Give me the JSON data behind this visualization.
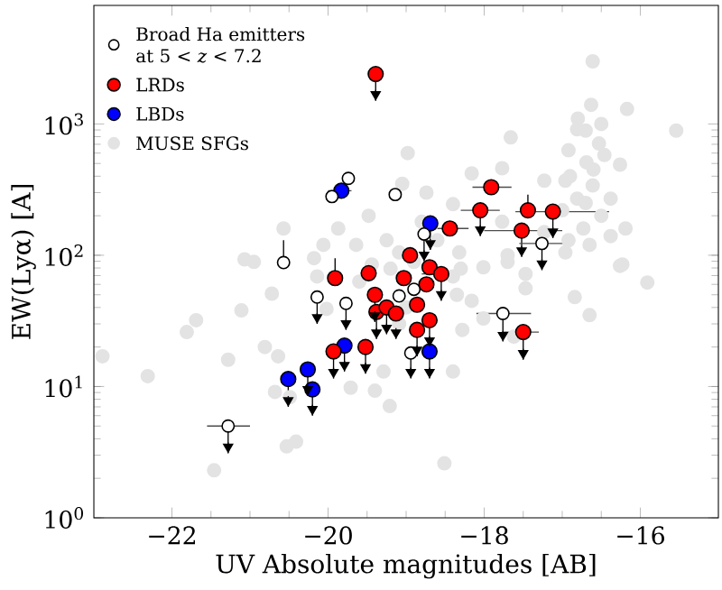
{
  "chart_data": {
    "type": "scatter",
    "xlabel": "UV Absolute magnitudes [AB]",
    "ylabel": "EW(Lyα) [A]",
    "xlim": [
      -23,
      -15
    ],
    "ylim": [
      1,
      8000
    ],
    "log": "y",
    "marker": "circle",
    "legend": "top left",
    "grid": false,
    "xticks": [
      {
        "value": -22,
        "label": "−22"
      },
      {
        "value": -20,
        "label": "−20"
      },
      {
        "value": -18,
        "label": "−18"
      },
      {
        "value": -16,
        "label": "−16"
      }
    ],
    "yticks": [
      {
        "value": 1,
        "label": "10$^{0}$"
      },
      {
        "value": 10,
        "label": "10$^{1}$"
      },
      {
        "value": 100,
        "label": "10$^{2}$"
      },
      {
        "value": 1000,
        "label": "10$^{3}$"
      }
    ],
    "series": [
      {
        "name": "Broad Ha emitters at 5 < *z* < 7.2",
        "color": "#ffffff",
        "x": [
          -19.74,
          -19.95,
          -19.14,
          -18.77,
          -20.57,
          -17.26,
          -20.14,
          -19.77,
          -19.09,
          -18.9,
          -18.94,
          -21.28,
          -17.76
        ],
        "values": [
          385,
          280,
          290,
          145,
          88,
          123,
          48,
          43,
          49,
          55,
          18,
          5.0,
          36
        ],
        "errors": [
          null,
          null,
          null,
          [
            90,
            145
          ],
          [
            88,
            130
          ],
          [
            77,
            123
          ],
          [
            30,
            48
          ],
          [
            27,
            43
          ],
          null,
          null,
          [
            11.5,
            18
          ],
          [
            3.1,
            5.0
          ],
          [
            22,
            36
          ]
        ],
        "xerrors": [
          null,
          null,
          null,
          null,
          null,
          [
            -17.55,
            -16.95
          ],
          null,
          null,
          null,
          null,
          null,
          [
            -21.55,
            -21.0
          ],
          [
            -18.1,
            -17.4
          ]
        ]
      },
      {
        "name": "LRDs",
        "color": "#ff0000",
        "x": [
          -19.39,
          -19.91,
          -19.48,
          -18.95,
          -19.03,
          -18.7,
          -17.91,
          -18.05,
          -17.44,
          -17.12,
          -17.52,
          -18.44,
          -18.55,
          -19.4,
          -19.38,
          -19.25,
          -19.13,
          -18.86,
          -18.7,
          -18.86,
          -19.93,
          -19.52,
          -18.74,
          -17.5
        ],
        "values": [
          2400,
          67,
          73,
          100,
          67,
          81,
          330,
          220,
          220,
          215,
          154,
          160,
          72,
          50,
          37,
          40,
          36,
          42,
          32,
          27,
          18.5,
          20,
          60,
          26
        ],
        "errors": [
          [
            1500,
            2400
          ],
          [
            67,
            95
          ],
          null,
          null,
          null,
          null,
          null,
          [
            140,
            220
          ],
          [
            220,
            290
          ],
          [
            135,
            215
          ],
          [
            97,
            154
          ],
          null,
          [
            45,
            72
          ],
          [
            31,
            50
          ],
          [
            23,
            37
          ],
          [
            25,
            40
          ],
          [
            23,
            36
          ],
          null,
          [
            20,
            32
          ],
          [
            17,
            27
          ],
          [
            11.5,
            18.5
          ],
          [
            12.5,
            20
          ],
          null,
          [
            16,
            26
          ]
        ],
        "xerrors": [
          null,
          null,
          null,
          null,
          null,
          null,
          [
            -18.15,
            -17.65
          ],
          [
            -18.3,
            -17.8
          ],
          null,
          [
            -17.6,
            -16.4
          ],
          [
            -18.0,
            -17.0
          ],
          [
            -18.6,
            -18.2
          ],
          [
            -18.8,
            -18.3
          ],
          null,
          null,
          null,
          null,
          null,
          null,
          null,
          null,
          null,
          null,
          [
            -17.75,
            -17.3
          ]
        ]
      },
      {
        "name": "LBDs",
        "color": "#0000ff",
        "x": [
          -19.83,
          -18.69,
          -19.79,
          -20.51,
          -20.26,
          -20.2,
          -18.7
        ],
        "values": [
          310,
          175,
          20.5,
          11.4,
          13.5,
          9.5,
          18.5
        ],
        "errors": [
          null,
          [
            110,
            175
          ],
          [
            13,
            20.5
          ],
          [
            7,
            11.4
          ],
          [
            8.5,
            13.5
          ],
          [
            6,
            9.5
          ],
          [
            11.5,
            18.5
          ]
        ],
        "xerrors": [
          [
            -20.0,
            -19.7
          ],
          null,
          null,
          null,
          null,
          null,
          null
        ]
      },
      {
        "name": "MUSE SFGs",
        "color": "#e3e3e3",
        "x": [
          -22.89,
          -22.31,
          -21.46,
          -21.28,
          -21.81,
          -21.69,
          -21.11,
          -20.72,
          -20.81,
          -20.64,
          -20.68,
          -20.53,
          -20.41,
          -20.49,
          -20.14,
          -20.02,
          -19.71,
          -19.21,
          -19.29,
          -20.18,
          -21.07,
          -20.57,
          -20.06,
          -19.48,
          -18.98,
          -19.05,
          -18.74,
          -19.87,
          -19.64,
          -20.95,
          -19.25,
          -19.09,
          -16.61,
          -16.17,
          -15.54,
          -17.66,
          -16.63,
          -16.81,
          -16.53,
          -17.77,
          -18.16,
          -16.92,
          -16.46,
          -16.69,
          -16.26,
          -17.23,
          -16.96,
          -16.61,
          -16.81,
          -16.38,
          -16.5,
          -16.73,
          -16.38,
          -16.19,
          -16.65,
          -16.92,
          -16.23,
          -15.91,
          -17.7,
          -17.47,
          -18.01,
          -18.32,
          -18.4,
          -17.77,
          -17.23,
          -16.96,
          -19.44,
          -17.7,
          -17.47,
          -16.84,
          -16.65,
          -16.26,
          -18.4,
          -18.51,
          -19.4,
          -18.28,
          -18.16,
          -18.01,
          -17.62,
          -19.09,
          -18.4,
          -18.9,
          -18.6,
          -18.35,
          -19.2,
          -18.8,
          -19.6,
          -19.0,
          -18.3,
          -17.0,
          -16.7,
          -16.9,
          -16.6,
          -16.7,
          -16.8,
          -16.5
        ],
        "values": [
          17,
          12,
          2.3,
          16,
          26,
          32,
          38,
          51,
          20,
          17,
          9.1,
          3.5,
          3.8,
          8.3,
          69,
          39,
          9.8,
          7.1,
          13,
          95,
          93,
          160,
          120,
          200,
          600,
          350,
          300,
          160,
          120,
          89,
          130,
          105,
          3000,
          1300,
          890,
          790,
          1400,
          910,
          710,
          460,
          420,
          630,
          580,
          510,
          490,
          370,
          370,
          340,
          270,
          270,
          200,
          160,
          140,
          160,
          120,
          130,
          85,
          62,
          100,
          72,
          81,
          105,
          245,
          180,
          150,
          105,
          85,
          89,
          56,
          48,
          35,
          83,
          13,
          2.6,
          9.3,
          27,
          45,
          33,
          24,
          30,
          69,
          89,
          130,
          50,
          79,
          180,
          63,
          40,
          79,
          220,
          250,
          400,
          450,
          890,
          1100,
          1000
        ]
      }
    ]
  }
}
